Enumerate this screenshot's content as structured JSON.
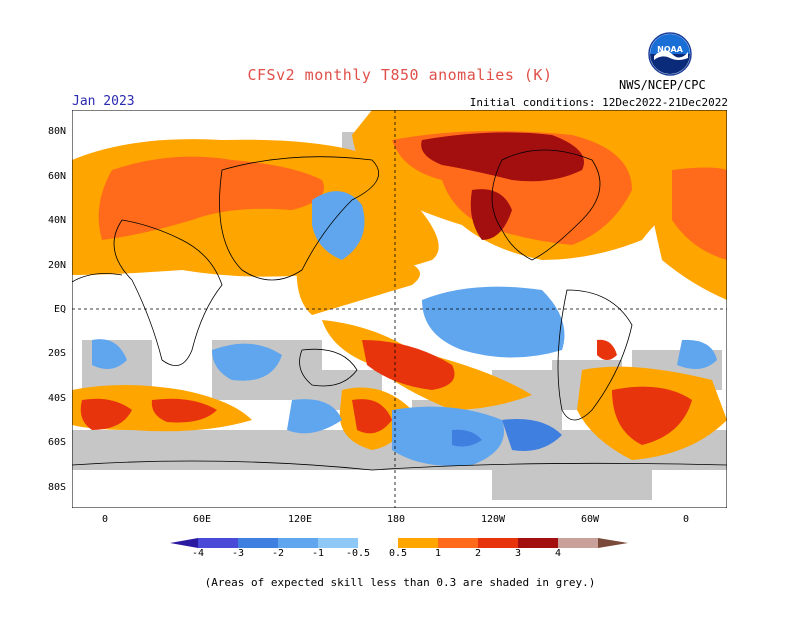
{
  "title": "CFSv2 monthly T850 anomalies (K)",
  "agency": "NWS/NCEP/CPC",
  "logo_text": "NOAA",
  "forecast_month": "Jan 2023",
  "initial_conditions": "Initial conditions: 12Dec2022-21Dec2022",
  "lat_labels": [
    "80N",
    "60N",
    "40N",
    "20N",
    "EQ",
    "20S",
    "40S",
    "60S",
    "80S"
  ],
  "lon_labels": [
    "0",
    "60E",
    "120E",
    "180",
    "120W",
    "60W",
    "0"
  ],
  "colorbar_labels": [
    "-4",
    "-3",
    "-2",
    "-1",
    "-0.5",
    "0.5",
    "1",
    "2",
    "3",
    "4"
  ],
  "colors": {
    "neg4": "#2a1aa0",
    "neg3": "#4a4ad8",
    "neg2": "#3f7fe0",
    "neg1": "#5fa6ee",
    "neg05": "#8ec8f6",
    "pos05": "#ffa500",
    "pos1": "#ff6b1a",
    "pos2": "#e8340d",
    "pos3": "#a30f0f",
    "pos4": "#c9a09a",
    "grey": "#c6c6c6"
  },
  "footnote": "(Areas of expected skill less than 0.3 are shaded in grey.)"
}
